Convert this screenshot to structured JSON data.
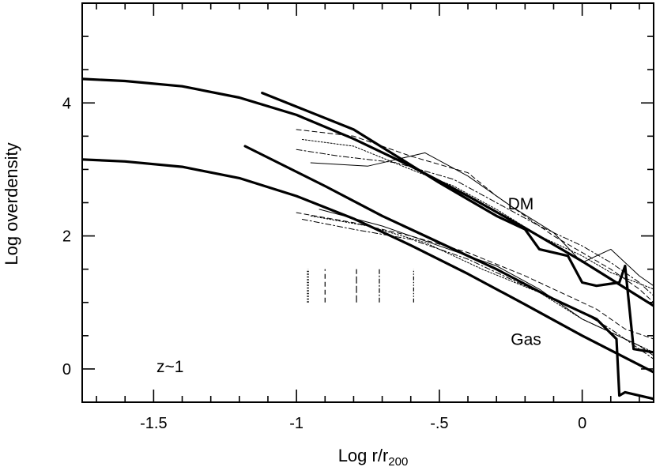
{
  "chart_data": {
    "type": "line",
    "title": "",
    "xlabel": "Log  r/r",
    "xlabel_sub": "200",
    "ylabel": "Log overdensity",
    "xlim": [
      -1.75,
      0.25
    ],
    "ylim": [
      -0.5,
      5.5
    ],
    "x_ticks": [
      -1.5,
      -1,
      -0.5,
      0
    ],
    "x_tick_labels": [
      "-1.5",
      "-1",
      "-.5",
      "0"
    ],
    "y_ticks": [
      0,
      2,
      4
    ],
    "y_tick_labels": [
      "0",
      "2",
      "4"
    ],
    "annotations": [
      {
        "text": "DM",
        "x": -0.26,
        "y": 2.4
      },
      {
        "text": "Gas",
        "x": -0.25,
        "y": 0.36
      },
      {
        "text": "z~1",
        "x": -1.49,
        "y": -0.05
      }
    ],
    "series": [
      {
        "style": "thick",
        "x": [
          -1.75,
          -1.6,
          -1.4,
          -1.2,
          -1.0,
          -0.8,
          -0.6,
          -0.4,
          -0.2,
          0.0,
          0.25
        ],
        "y": [
          4.36,
          4.33,
          4.25,
          4.08,
          3.82,
          3.46,
          3.05,
          2.6,
          2.12,
          1.62,
          0.95
        ]
      },
      {
        "style": "thick",
        "x": [
          -1.75,
          -1.6,
          -1.4,
          -1.2,
          -1.0,
          -0.8,
          -0.6,
          -0.4,
          -0.2,
          0.0,
          0.25
        ],
        "y": [
          3.15,
          3.12,
          3.04,
          2.87,
          2.6,
          2.26,
          1.86,
          1.43,
          0.97,
          0.5,
          -0.05
        ]
      },
      {
        "style": "thick",
        "x": [
          -1.12,
          -0.8,
          -0.5,
          -0.3,
          -0.2,
          -0.15,
          -0.05,
          0.0,
          0.05,
          0.13,
          0.15,
          0.18,
          0.25
        ],
        "y": [
          4.15,
          3.6,
          2.8,
          2.3,
          2.1,
          1.8,
          1.7,
          1.3,
          1.25,
          1.3,
          1.55,
          0.3,
          0.25
        ]
      },
      {
        "style": "thick",
        "x": [
          -1.18,
          -0.9,
          -0.7,
          -0.5,
          -0.3,
          -0.1,
          0.05,
          0.12,
          0.13,
          0.15,
          0.25
        ],
        "y": [
          3.35,
          2.75,
          2.3,
          1.9,
          1.5,
          1.05,
          0.75,
          0.45,
          -0.4,
          -0.35,
          -0.45
        ]
      },
      {
        "style": "dashed",
        "x": [
          -1.0,
          -0.8,
          -0.6,
          -0.4,
          -0.3,
          -0.2,
          -0.1,
          0.0,
          0.1,
          0.2,
          0.25
        ],
        "y": [
          3.6,
          3.5,
          3.2,
          2.95,
          2.6,
          2.3,
          2.0,
          1.75,
          1.5,
          1.2,
          1.0
        ]
      },
      {
        "style": "dashdot",
        "x": [
          -1.0,
          -0.85,
          -0.65,
          -0.45,
          -0.3,
          -0.15,
          0.0,
          0.1,
          0.2,
          0.25
        ],
        "y": [
          3.3,
          3.2,
          3.1,
          2.85,
          2.5,
          2.15,
          1.85,
          1.6,
          1.3,
          1.1
        ]
      },
      {
        "style": "dotted",
        "x": [
          -0.98,
          -0.8,
          -0.6,
          -0.45,
          -0.3,
          -0.15,
          0.0,
          0.1,
          0.25
        ],
        "y": [
          3.45,
          3.35,
          3.0,
          2.75,
          2.4,
          2.0,
          1.7,
          1.45,
          1.2
        ]
      },
      {
        "style": "thin",
        "x": [
          -0.95,
          -0.75,
          -0.55,
          -0.4,
          -0.25,
          -0.1,
          0.0,
          0.1,
          0.2,
          0.25
        ],
        "y": [
          3.1,
          3.05,
          3.25,
          2.9,
          2.45,
          2.05,
          1.6,
          1.8,
          1.4,
          1.25
        ]
      },
      {
        "style": "dashed",
        "x": [
          -1.0,
          -0.8,
          -0.6,
          -0.4,
          -0.2,
          -0.05,
          0.05,
          0.15,
          0.25
        ],
        "y": [
          2.35,
          2.2,
          2.0,
          1.75,
          1.4,
          1.1,
          0.9,
          0.6,
          0.45
        ]
      },
      {
        "style": "dashdot",
        "x": [
          -0.98,
          -0.8,
          -0.6,
          -0.4,
          -0.2,
          0.0,
          0.1,
          0.2,
          0.25
        ],
        "y": [
          2.25,
          2.1,
          1.95,
          1.65,
          1.25,
          0.85,
          0.6,
          0.3,
          0.15
        ]
      },
      {
        "style": "dotted",
        "x": [
          -0.95,
          -0.75,
          -0.55,
          -0.35,
          -0.15,
          0.0,
          0.15,
          0.25
        ],
        "y": [
          2.3,
          2.15,
          1.9,
          1.5,
          1.15,
          0.75,
          0.45,
          0.25
        ]
      },
      {
        "style": "thin",
        "x": [
          -0.92,
          -0.7,
          -0.5,
          -0.3,
          -0.15,
          0.0,
          0.1,
          0.2,
          0.25
        ],
        "y": [
          2.4,
          2.15,
          1.85,
          1.55,
          1.2,
          0.75,
          0.55,
          0.35,
          0.2
        ]
      }
    ],
    "resolution_markers": [
      {
        "x": -0.96,
        "style": "dotted"
      },
      {
        "x": -0.9,
        "style": "dashed"
      },
      {
        "x": -0.79,
        "style": "longdash"
      },
      {
        "x": -0.71,
        "style": "dashdot"
      },
      {
        "x": -0.59,
        "style": "dashdotdot"
      }
    ],
    "marker_y_range": [
      1.0,
      1.5
    ],
    "grid": false,
    "legend": "none"
  }
}
